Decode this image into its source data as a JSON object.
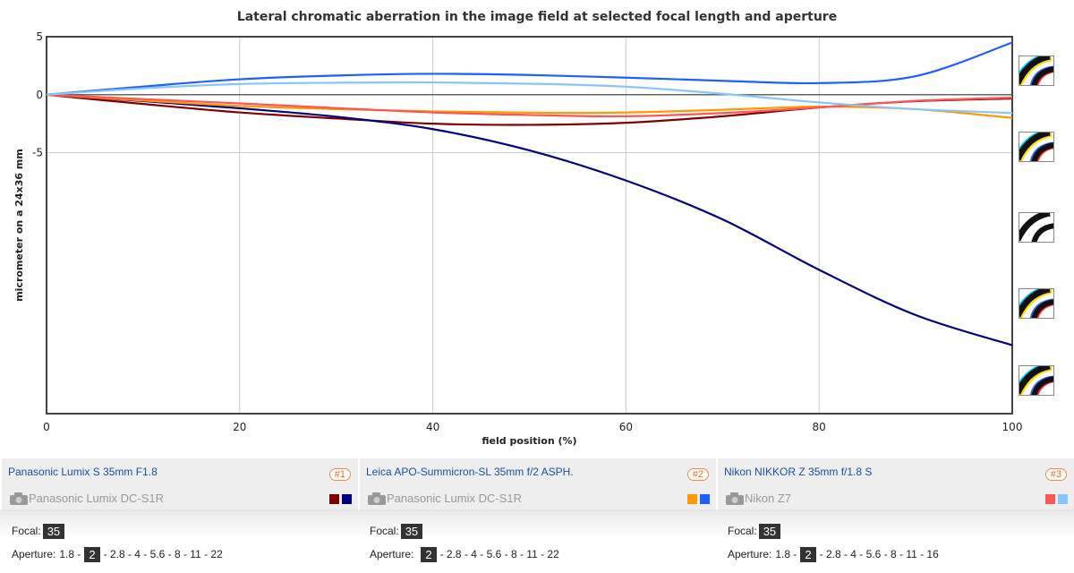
{
  "chart_data": {
    "type": "line",
    "title": "Lateral chromatic aberration in the image field at selected focal length and aperture",
    "xlabel": "field position (%)",
    "ylabel": "micrometer on a 24x36 mm",
    "xlim": [
      0,
      100
    ],
    "ylim": [
      -27.5,
      5
    ],
    "xticks": [
      0,
      20,
      40,
      60,
      80,
      100
    ],
    "yticks": [
      5,
      0,
      -5
    ],
    "grid": true,
    "x": [
      0,
      10,
      20,
      30,
      40,
      50,
      60,
      70,
      80,
      90,
      100
    ],
    "series": [
      {
        "lens": "#1",
        "color": "#800000",
        "values": [
          0,
          -0.8,
          -1.53,
          -2.05,
          -2.5,
          -2.6,
          -2.42,
          -1.86,
          -1.1,
          -0.56,
          -0.33
        ]
      },
      {
        "lens": "#1",
        "color": "#000080",
        "values": [
          0,
          -0.55,
          -1.17,
          -1.9,
          -2.97,
          -4.8,
          -7.4,
          -10.75,
          -15.1,
          -19,
          -21.6
        ]
      },
      {
        "lens": "#2",
        "color": "#ff9900",
        "values": [
          0,
          -0.5,
          -0.97,
          -1.25,
          -1.44,
          -1.55,
          -1.53,
          -1.3,
          -1.03,
          -1.25,
          -2.0
        ]
      },
      {
        "lens": "#2",
        "color": "#1f5fff",
        "values": [
          0,
          0.7,
          1.33,
          1.65,
          1.8,
          1.7,
          1.47,
          1.2,
          1.0,
          1.6,
          4.5
        ]
      },
      {
        "lens": "#3",
        "color": "#ff5555",
        "values": [
          0,
          -0.38,
          -0.75,
          -1.15,
          -1.53,
          -1.75,
          -1.86,
          -1.58,
          -1.1,
          -0.53,
          -0.25
        ]
      },
      {
        "lens": "#3",
        "color": "#88c4ff",
        "values": [
          0,
          0.55,
          0.92,
          1.03,
          1.06,
          0.95,
          0.69,
          0.08,
          -0.67,
          -1.25,
          -1.58
        ]
      }
    ]
  },
  "icons": [
    "ca-fringe-sample-icon",
    "ca-fringe-sample-icon",
    "ca-fringe-neutral-icon",
    "ca-fringe-sample-icon",
    "ca-fringe-sample-icon"
  ],
  "lenses": [
    {
      "name": "Panasonic Lumix S 35mm F1.8",
      "badge": "#1",
      "camera": "Panasonic Lumix DC-S1R",
      "colors": [
        "#800000",
        "#000080"
      ],
      "focal_label": "Focal:",
      "focal": "35",
      "aperture_label": "Aperture:",
      "ap_before": "1.8 -",
      "ap_selected": "2",
      "ap_after": "- 2.8 - 4 - 5.6 - 8 - 11 - 22"
    },
    {
      "name": "Leica APO-Summicron-SL 35mm f/2 ASPH.",
      "badge": "#2",
      "camera": "Panasonic Lumix DC-S1R",
      "colors": [
        "#ff9900",
        "#1f5fff"
      ],
      "focal_label": "Focal:",
      "focal": "35",
      "aperture_label": "Aperture:",
      "ap_before": "",
      "ap_selected": "2",
      "ap_after": "- 2.8 - 4 - 5.6 - 8 - 11 - 22"
    },
    {
      "name": "Nikon NIKKOR Z 35mm f/1.8 S",
      "badge": "#3",
      "camera": "Nikon Z7",
      "colors": [
        "#ff5555",
        "#88c4ff"
      ],
      "focal_label": "Focal:",
      "focal": "35",
      "aperture_label": "Aperture:",
      "ap_before": "1.8 -",
      "ap_selected": "2",
      "ap_after": "- 2.8 - 4 - 5.6 - 8 - 11 - 16"
    }
  ]
}
